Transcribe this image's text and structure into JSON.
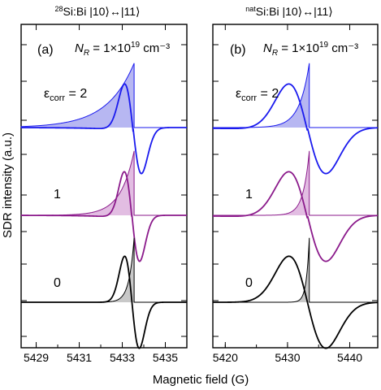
{
  "figure": {
    "ylabel": "SDR intensity (a.u.)",
    "xlabel": "Magnetic field (G)"
  },
  "chart_data": [
    {
      "type": "line",
      "panel_label": "(a)",
      "title_iso": "28",
      "title_main": "Si:Bi |10⟩↔|11⟩",
      "annotation": {
        "prefix": "N",
        "sub": "R",
        "mid": " = 1×10",
        "exp": "19",
        "unit": " cm⁻³"
      },
      "xlabel": "Magnetic field (G)",
      "ylabel": "SDR intensity (a.u.)",
      "xlim": [
        5428.3,
        5436.0
      ],
      "xticks": [
        "5429",
        "5431",
        "5433",
        "5435"
      ],
      "xtick_values": [
        5429,
        5431,
        5433,
        5435
      ],
      "line_position": 5433.55,
      "series": [
        {
          "label": "2",
          "label_prefix": "εcorr = ",
          "color": "#1a1aee",
          "fill": "#b7b7f2",
          "offset": 2,
          "center": 5433.5,
          "width": 0.55,
          "amp": 0.75,
          "tail": 7.0
        },
        {
          "label": "1",
          "label_prefix": "",
          "color": "#8b1a8b",
          "fill": "#e2bde2",
          "offset": 1,
          "center": 5433.45,
          "width": 0.5,
          "amp": 0.8,
          "tail": 3.5
        },
        {
          "label": "0",
          "label_prefix": "",
          "color": "#000000",
          "fill": "#c8c8c8",
          "offset": 0,
          "center": 5433.45,
          "width": 0.48,
          "amp": 0.8,
          "tail": 1.3
        }
      ]
    },
    {
      "type": "line",
      "panel_label": "(b)",
      "title_iso": "nat",
      "title_main": "Si:Bi |10⟩↔|11⟩",
      "annotation": {
        "prefix": "N",
        "sub": "R",
        "mid": " = 1×10",
        "exp": "19",
        "unit": " cm⁻³"
      },
      "xlabel": "Magnetic field (G)",
      "ylabel": "",
      "xlim": [
        5418.0,
        5444.5
      ],
      "xticks": [
        "5420",
        "5430",
        "5440"
      ],
      "xtick_values": [
        5420,
        5430,
        5440
      ],
      "line_position": 5433.5,
      "series": [
        {
          "label": "2",
          "label_prefix": "εcorr = ",
          "color": "#1a1aee",
          "fill": "#b7b7f2",
          "offset": 2,
          "center": 5433.2,
          "width": 4.2,
          "amp": 0.75,
          "tail": 4.0
        },
        {
          "label": "1",
          "label_prefix": "",
          "color": "#8b1a8b",
          "fill": "#e2bde2",
          "offset": 1,
          "center": 5433.2,
          "width": 4.2,
          "amp": 0.8,
          "tail": 2.5
        },
        {
          "label": "0",
          "label_prefix": "",
          "color": "#000000",
          "fill": "#c8c8c8",
          "offset": 0,
          "center": 5433.2,
          "width": 4.2,
          "amp": 0.8,
          "tail": 1.2
        }
      ]
    }
  ]
}
